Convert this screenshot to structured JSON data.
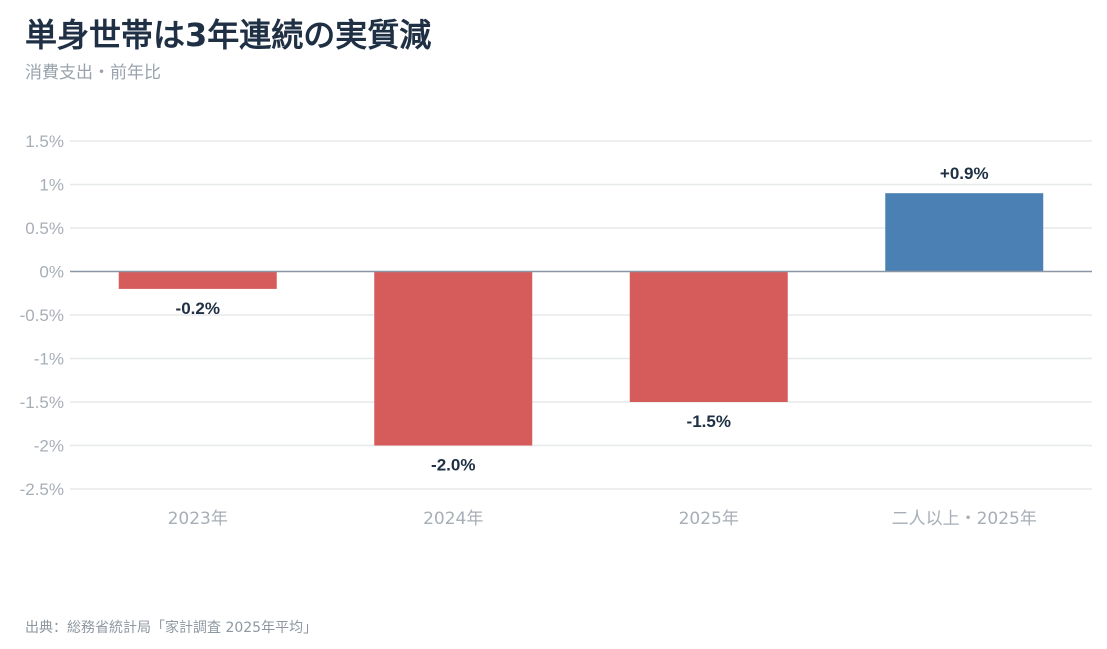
{
  "title": "単身世帯は3年連続の実質減",
  "subtitle": "消費支出・前年比",
  "source": "出典：総務省統計局「家計調査 2025年平均」",
  "colors": {
    "negative": "#d65b5b",
    "positive": "#4a80b3",
    "zero_line": "#8a97a6",
    "grid": "#e6e9ec"
  },
  "chart_data": {
    "type": "bar",
    "title": "単身世帯は3年連続の実質減",
    "subtitle": "消費支出・前年比",
    "categories": [
      "2023年",
      "2024年",
      "2025年",
      "二人以上・2025年"
    ],
    "values": [
      -0.2,
      -2.0,
      -1.5,
      0.9
    ],
    "value_labels": [
      "-0.2%",
      "-2.0%",
      "-1.5%",
      "+0.9%"
    ],
    "ylim": [
      -2.5,
      1.5
    ],
    "yticks": [
      1.5,
      1,
      0.5,
      0,
      -0.5,
      -1,
      -1.5,
      -2,
      -2.5
    ],
    "ytick_labels": [
      "1.5%",
      "1%",
      "0.5%",
      "0%",
      "-0.5%",
      "-1%",
      "-1.5%",
      "-2%",
      "-2.5%"
    ],
    "grid": true,
    "legend": "none"
  }
}
